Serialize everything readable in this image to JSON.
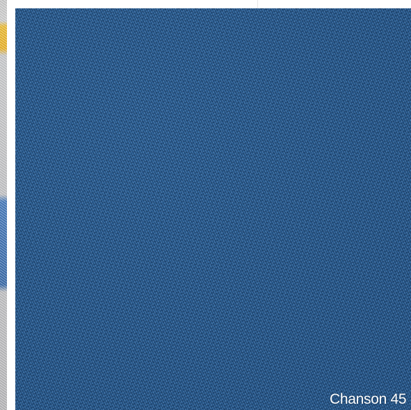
{
  "carousel": {
    "current_item": {
      "caption": "Chanson 45",
      "swatch_color": "#2a5e93"
    },
    "previous_item": {
      "accent_colors": [
        "#f2c23a",
        "#4a7fc1",
        "#cfcfcf"
      ]
    }
  }
}
